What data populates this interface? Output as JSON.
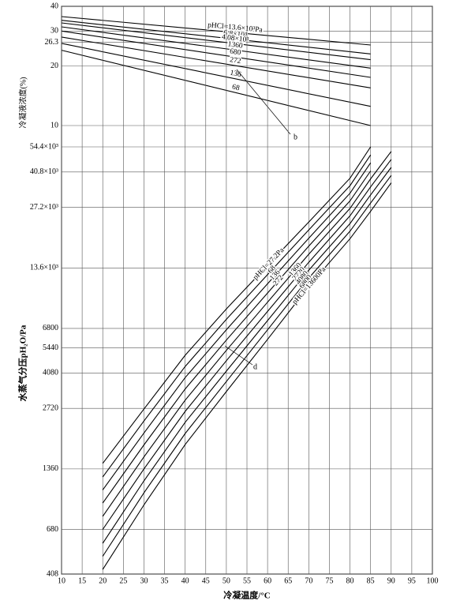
{
  "chart_data": [
    {
      "type": "line",
      "ylabel": "冷凝液浓度(%)",
      "annotation": "b",
      "log_scale": true,
      "color": "#000000",
      "xlim": [
        10,
        100
      ],
      "ylim": [
        10,
        40
      ],
      "yticks": [
        10,
        20,
        26.3,
        30,
        40
      ],
      "x": [
        10,
        85
      ],
      "series": [
        {
          "name": "pHCl=13.6×10³Pa",
          "values": [
            35.5,
            25.5
          ]
        },
        {
          "name": "6.8×10³",
          "values": [
            34,
            23
          ]
        },
        {
          "name": "4.08×10³",
          "values": [
            33,
            21.5
          ]
        },
        {
          "name": "1360",
          "values": [
            31.5,
            19.5
          ]
        },
        {
          "name": "680",
          "values": [
            30,
            17.5
          ]
        },
        {
          "name": "272",
          "values": [
            28,
            15.5
          ]
        },
        {
          "name": "136",
          "values": [
            26,
            12.5
          ]
        },
        {
          "name": "68",
          "values": [
            24,
            10
          ]
        }
      ]
    },
    {
      "type": "line",
      "xlabel": "冷凝温度/°C",
      "ylabel": "水蒸气分压pH₂O/Pa",
      "annotation": "d",
      "log_scale": true,
      "color": "#000000",
      "xlim": [
        10,
        100
      ],
      "xticks": [
        10,
        15,
        20,
        25,
        30,
        35,
        40,
        45,
        50,
        55,
        60,
        65,
        70,
        75,
        80,
        85,
        90,
        95,
        100
      ],
      "ylim": [
        408,
        54400
      ],
      "yticks": [
        408,
        680,
        1360,
        2720,
        4080,
        5440,
        6800,
        {
          "value": 13600,
          "label": "13.6×10³"
        },
        {
          "value": 27200,
          "label": "27.2×10³"
        },
        {
          "value": 40800,
          "label": "40.8×10³"
        },
        {
          "value": 54400,
          "label": "54.4×10³"
        }
      ],
      "x": [
        20,
        30,
        40,
        50,
        60,
        70,
        80,
        85,
        90
      ],
      "series": [
        {
          "name": "pHCl=27.2Pa",
          "values": [
            1450,
            2700,
            5000,
            8500,
            14000,
            23000,
            38000,
            54400,
            null
          ]
        },
        {
          "name": "68",
          "values": [
            1240,
            2354,
            4400,
            7550,
            12600,
            21000,
            34900,
            49600,
            null
          ]
        },
        {
          "name": "136",
          "values": [
            1070,
            2052,
            3870,
            6700,
            11340,
            19100,
            32000,
            45300,
            null
          ]
        },
        {
          "name": "272",
          "values": [
            920,
            1790,
            3400,
            5950,
            10200,
            17450,
            29300,
            41300,
            null
          ]
        },
        {
          "name": "1360",
          "values": [
            790,
            1560,
            2990,
            5290,
            9180,
            15900,
            26900,
            37700,
            51600
          ]
        },
        {
          "name": "2720",
          "values": [
            680,
            1360,
            2630,
            4700,
            8260,
            14500,
            24700,
            34400,
            47100
          ]
        },
        {
          "name": "4080",
          "values": [
            580,
            1186,
            2320,
            4170,
            7440,
            13250,
            22600,
            31400,
            43000
          ]
        },
        {
          "name": "6800",
          "values": [
            500,
            1034,
            2040,
            3700,
            6690,
            12100,
            20700,
            28600,
            39200
          ]
        },
        {
          "name": "pHCl=13600Pa",
          "values": [
            430,
            900,
            1800,
            3300,
            6000,
            11000,
            19000,
            26000,
            36000
          ]
        }
      ]
    }
  ]
}
